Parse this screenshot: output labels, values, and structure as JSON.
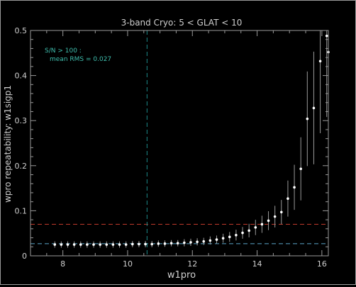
{
  "chart_data": {
    "type": "scatter",
    "title": "3-band Cryo:  5 < GLAT < 10",
    "xlabel": "w1pro",
    "ylabel": "wpro repeatability: w1sigp1",
    "xlim": [
      7.0,
      16.2
    ],
    "ylim": [
      0.0,
      0.5
    ],
    "x_ticks": [
      8,
      10,
      12,
      14,
      16
    ],
    "x_tick_labels": [
      "8",
      "10",
      "12",
      "14",
      "16"
    ],
    "y_ticks": [
      0,
      0.1,
      0.2,
      0.3,
      0.4,
      0.5
    ],
    "y_tick_labels": [
      "0",
      "0.1",
      "0.2",
      "0.3",
      "0.4",
      "0.5"
    ],
    "x_minor_step": 0.5,
    "y_minor_step": 0.02,
    "annotation": {
      "line1": "S/N > 100 :",
      "line2": "mean RMS =  0.027"
    },
    "reference_lines": [
      {
        "orientation": "horizontal",
        "value": 0.027,
        "color": "#5aa7c9",
        "style": "dashed"
      },
      {
        "orientation": "horizontal",
        "value": 0.07,
        "color": "#c0392b",
        "style": "dashed"
      },
      {
        "orientation": "vertical",
        "value": 10.6,
        "color": "#1d8a8a",
        "style": "dashed"
      }
    ],
    "series": [
      {
        "x": [
          7.75,
          7.95,
          8.15,
          8.35,
          8.55,
          8.75,
          8.95,
          9.15,
          9.35,
          9.55,
          9.75,
          9.95,
          10.15,
          10.35,
          10.55,
          10.75,
          10.95,
          11.15,
          11.35,
          11.55,
          11.75,
          11.95,
          12.15,
          12.35,
          12.55,
          12.75,
          12.95,
          13.15,
          13.35,
          13.55,
          13.75,
          13.95,
          14.15,
          14.35,
          14.55,
          14.75,
          14.95,
          15.15,
          15.35,
          15.55,
          15.75,
          15.95,
          16.15
        ],
        "y": [
          0.025,
          0.025,
          0.025,
          0.025,
          0.025,
          0.025,
          0.025,
          0.025,
          0.025,
          0.025,
          0.025,
          0.025,
          0.026,
          0.026,
          0.026,
          0.026,
          0.027,
          0.027,
          0.028,
          0.028,
          0.029,
          0.03,
          0.031,
          0.032,
          0.034,
          0.036,
          0.039,
          0.042,
          0.046,
          0.051,
          0.056,
          0.063,
          0.07,
          0.078,
          0.087,
          0.097,
          0.127,
          0.152,
          0.193,
          0.304,
          0.328,
          0.432,
          0.488
        ],
        "err": [
          0.007,
          0.007,
          0.007,
          0.007,
          0.007,
          0.007,
          0.007,
          0.007,
          0.007,
          0.007,
          0.007,
          0.007,
          0.007,
          0.007,
          0.007,
          0.007,
          0.007,
          0.007,
          0.007,
          0.007,
          0.008,
          0.008,
          0.008,
          0.008,
          0.009,
          0.009,
          0.01,
          0.011,
          0.012,
          0.013,
          0.015,
          0.017,
          0.019,
          0.021,
          0.024,
          0.027,
          0.04,
          0.05,
          0.07,
          0.105,
          0.125,
          0.16,
          0.18
        ],
        "point_color": "#ffffff",
        "errorbar_color": "#9a9a9a"
      },
      {
        "x": [
          16.2
        ],
        "y": [
          0.452
        ],
        "err": [
          0.05
        ],
        "point_color": "#ffffff",
        "errorbar_color": "#9a9a9a"
      }
    ],
    "colors": {
      "background": "#000000",
      "axes": "#9a9a9a",
      "text": "#cfcfcf",
      "annotation": "#3fbfae"
    }
  }
}
